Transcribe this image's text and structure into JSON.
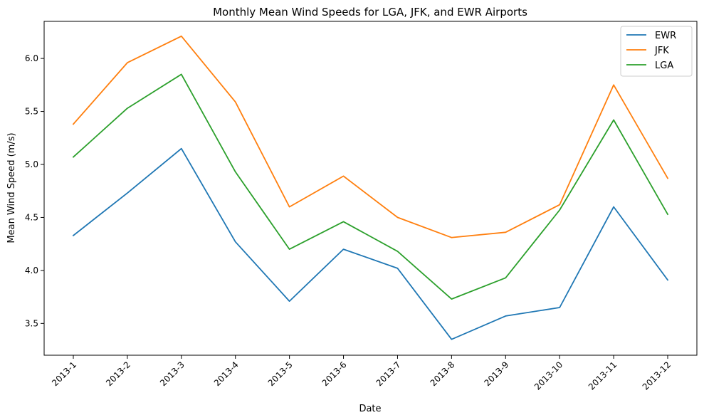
{
  "chart_data": {
    "type": "line",
    "title": "Monthly Mean Wind Speeds for LGA, JFK, and EWR Airports",
    "xlabel": "Date",
    "ylabel": "Mean Wind Speed (m/s)",
    "categories": [
      "2013-1",
      "2013-2",
      "2013-3",
      "2013-4",
      "2013-5",
      "2013-6",
      "2013-7",
      "2013-8",
      "2013-9",
      "2013-10",
      "2013-11",
      "2013-12"
    ],
    "ylim": [
      3.2,
      6.35
    ],
    "yticks": [
      3.5,
      4.0,
      4.5,
      5.0,
      5.5,
      6.0
    ],
    "ytick_labels": [
      "3.5",
      "4.0",
      "4.5",
      "5.0",
      "5.5",
      "6.0"
    ],
    "grid": false,
    "legend_position": "top-right",
    "series": [
      {
        "name": "EWR",
        "color": "#1f77b4",
        "values": [
          4.33,
          4.73,
          5.15,
          4.27,
          3.71,
          4.2,
          4.02,
          3.35,
          3.57,
          3.65,
          4.6,
          3.91
        ]
      },
      {
        "name": "JFK",
        "color": "#ff7f0e",
        "values": [
          5.38,
          5.96,
          6.21,
          5.59,
          4.6,
          4.89,
          4.5,
          4.31,
          4.36,
          4.62,
          5.75,
          4.87
        ]
      },
      {
        "name": "LGA",
        "color": "#2ca02c",
        "values": [
          5.07,
          5.53,
          5.85,
          4.93,
          4.2,
          4.46,
          4.18,
          3.73,
          3.93,
          4.57,
          5.42,
          4.53
        ]
      }
    ]
  }
}
